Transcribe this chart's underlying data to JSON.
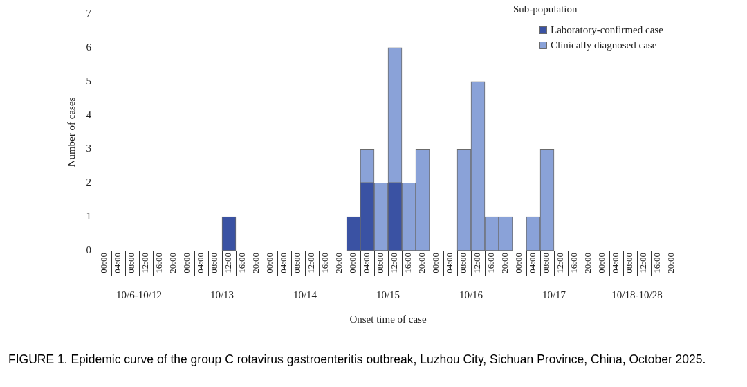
{
  "chart_data": {
    "type": "bar",
    "stacked": true,
    "title": "FIGURE 1. Epidemic curve of the group C rotavirus gastroenteritis outbreak, Luzhou City, Sichuan Province, China, October 2025.",
    "xlabel": "Onset time of case",
    "ylabel": "Number of cases",
    "legend_title": "Sub-population",
    "legend": "top right",
    "grid": false,
    "categories": [
      "00:00",
      "04:00",
      "08:00",
      "12:00",
      "16:00",
      "20:00",
      "00:00",
      "04:00",
      "08:00",
      "12:00",
      "16:00",
      "20:00",
      "00:00",
      "04:00",
      "08:00",
      "12:00",
      "16:00",
      "20:00",
      "00:00",
      "04:00",
      "08:00",
      "12:00",
      "16:00",
      "20:00",
      "00:00",
      "04:00",
      "08:00",
      "12:00",
      "16:00",
      "20:00",
      "00:00",
      "04:00",
      "08:00",
      "12:00",
      "16:00",
      "20:00",
      "00:00",
      "04:00",
      "08:00",
      "12:00",
      "16:00",
      "20:00"
    ],
    "annotations": [
      "10/6-10/12",
      "10/13",
      "10/14",
      "10/15",
      "10/16",
      "10/17",
      "10/18-10/28"
    ],
    "ylim": [
      0,
      7
    ],
    "yticks": [
      0,
      1,
      2,
      3,
      4,
      5,
      6,
      7
    ],
    "series": [
      {
        "name": "Laboratory-confirmed case",
        "color": "#3a52a3",
        "values": [
          0,
          0,
          0,
          0,
          0,
          0,
          0,
          0,
          0,
          1,
          0,
          0,
          0,
          0,
          0,
          0,
          0,
          0,
          1,
          2,
          0,
          2,
          0,
          0,
          0,
          0,
          0,
          0,
          0,
          0,
          0,
          0,
          0,
          0,
          0,
          0,
          0,
          0,
          0,
          0,
          0,
          0
        ]
      },
      {
        "name": "Clinically diagnosed case",
        "color": "#8aa2d8",
        "values": [
          0,
          0,
          0,
          0,
          0,
          0,
          0,
          0,
          0,
          0,
          0,
          0,
          0,
          0,
          0,
          0,
          0,
          0,
          0,
          1,
          2,
          4,
          2,
          3,
          0,
          0,
          3,
          5,
          1,
          1,
          0,
          1,
          3,
          0,
          0,
          0,
          0,
          0,
          0,
          0,
          0,
          0
        ]
      }
    ]
  }
}
